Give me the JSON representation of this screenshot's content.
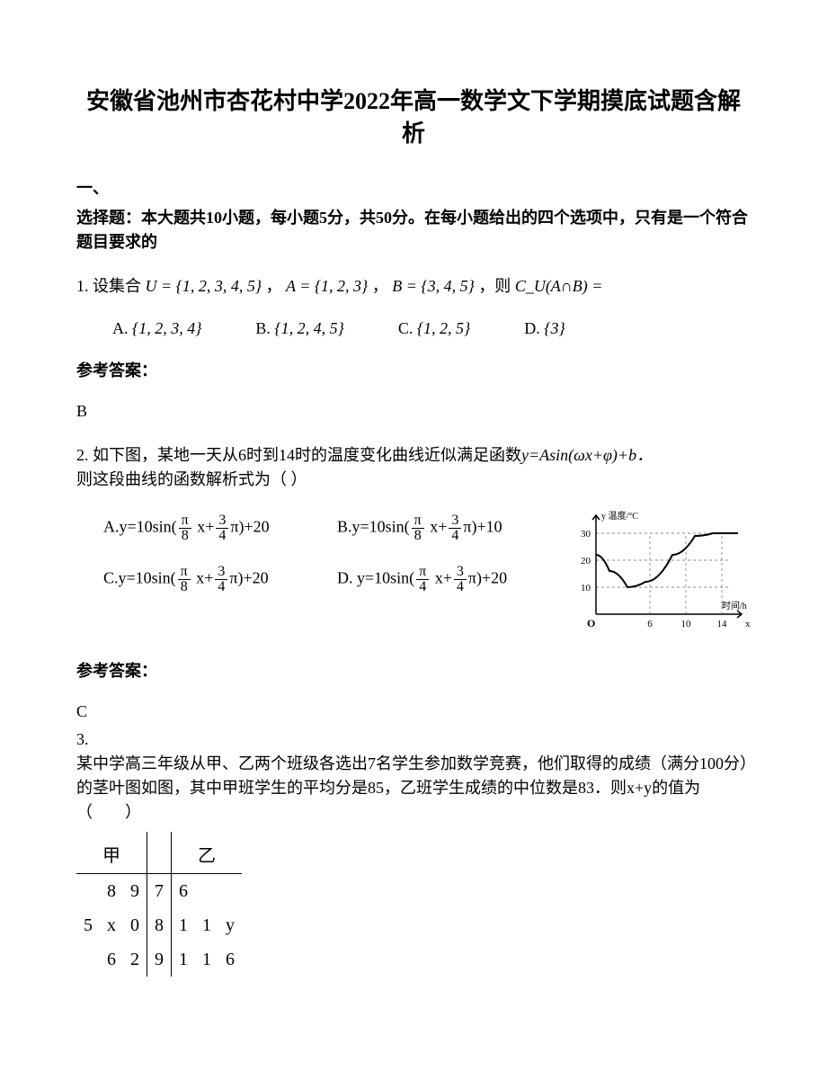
{
  "title": "安徽省池州市杏花村中学2022年高一数学文下学期摸底试题含解析",
  "section1": {
    "heading1": "一、",
    "heading2": "选择题：本大题共10小题，每小题5分，共50分。在每小题给出的四个选项中，只有是一个符合题目要求的"
  },
  "q1": {
    "prefix": "1. 设集合",
    "U": "U = {1, 2, 3, 4, 5}",
    "comma1": "，",
    "A": "A = {1, 2, 3}",
    "comma2": "，",
    "B": "B = {3, 4, 5}",
    "comma3": "，则",
    "expr": "C_U(A∩B) =",
    "optA_label": "A.",
    "optA": "{1, 2, 3, 4}",
    "optB_label": "B.",
    "optB": "{1, 2, 4, 5}",
    "optC_label": "C.",
    "optC": "{1, 2, 5}",
    "optD_label": "D.",
    "optD": "{3}",
    "answer_label": "参考答案：",
    "answer": "B"
  },
  "q2": {
    "text1": "2. 如下图，某地一天从6时到14时的温度变化曲线近似满足函数",
    "formula": "y=Asin(ωx+φ)+b．",
    "text2": "则这段曲线的函数解析式为（  ）",
    "options": {
      "A_prefix": "A.y=10sin(",
      "B_prefix": "B.y=10sin(",
      "C_prefix": "C.y=10sin(",
      "D_prefix": "D. y=10sin(",
      "A_suffix": "π)+20",
      "B_suffix": "π)+10",
      "C_suffix": "π)+20",
      "D_suffix": "π)+20",
      "pi": "π",
      "x_plus": " x+",
      "frac_pi_8_num": "π",
      "frac_pi_8_den": "8",
      "frac_pi_4_num": "π",
      "frac_pi_4_den": "4",
      "frac_3_4_num": "3",
      "frac_3_4_den": "4"
    },
    "chart": {
      "y_label": "y 温度/°C",
      "x_label": "时间/h",
      "origin": "O",
      "y_ticks": [
        10,
        20,
        30
      ],
      "x_ticks": [
        6,
        10,
        14
      ],
      "x_axis_arrow": "x",
      "curve_points": [
        [
          0,
          22
        ],
        [
          15,
          16
        ],
        [
          35,
          10
        ],
        [
          55,
          12
        ],
        [
          85,
          22
        ],
        [
          110,
          29
        ],
        [
          130,
          30
        ],
        [
          158,
          30
        ]
      ],
      "colors": {
        "bg": "#ffffff",
        "axis": "#000000",
        "curve": "#000000",
        "dash": "#000000"
      }
    },
    "answer_label": "参考答案：",
    "answer": "C"
  },
  "q3": {
    "num": "3.",
    "text": "某中学高三年级从甲、乙两个班级各选出7名学生参加数学竞赛，他们取得的成绩（满分100分）的茎叶图如图，其中甲班学生的平均分是85，乙班学生成绩的中位数是83．则x+y的值为（　　）",
    "stemleaf": {
      "header_left": "甲",
      "header_right": "乙",
      "rows": [
        {
          "left": [
            "8",
            "9"
          ],
          "stem": "7",
          "right": [
            "6",
            "",
            ""
          ]
        },
        {
          "left": [
            "5",
            "x",
            "0"
          ],
          "stem": "8",
          "right": [
            "1",
            "1",
            "y"
          ]
        },
        {
          "left": [
            "6",
            "2"
          ],
          "stem": "9",
          "right": [
            "1",
            "1",
            "6"
          ]
        }
      ]
    }
  }
}
